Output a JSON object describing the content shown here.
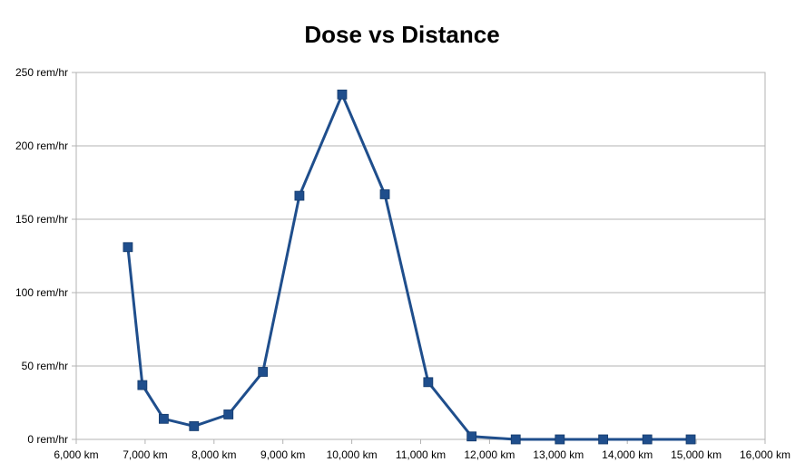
{
  "chart_data": {
    "type": "line",
    "title": "Dose vs Distance",
    "xlabel": "",
    "ylabel": "",
    "xlim": [
      6000,
      16000
    ],
    "ylim": [
      0,
      250
    ],
    "x_ticks": [
      "6,000 km",
      "7,000 km",
      "8,000 km",
      "9,000 km",
      "10,000 km",
      "11,000 km",
      "12,000 km",
      "13,000 km",
      "14,000 km",
      "15,000 km",
      "16,000 km"
    ],
    "y_ticks": [
      "0 rem/hr",
      "50 rem/hr",
      "100 rem/hr",
      "150 rem/hr",
      "200 rem/hr",
      "250 rem/hr"
    ],
    "grid": "horizontal",
    "legend": "none",
    "series": [
      {
        "color": "#1f4e8c",
        "marker": "square",
        "points": [
          {
            "x": 6750,
            "y": 131
          },
          {
            "x": 6960,
            "y": 37
          },
          {
            "x": 7270,
            "y": 14
          },
          {
            "x": 7710,
            "y": 9
          },
          {
            "x": 8210,
            "y": 17
          },
          {
            "x": 8710,
            "y": 46
          },
          {
            "x": 9240,
            "y": 166
          },
          {
            "x": 9860,
            "y": 235
          },
          {
            "x": 10480,
            "y": 167
          },
          {
            "x": 11110,
            "y": 39
          },
          {
            "x": 11740,
            "y": 2
          },
          {
            "x": 12380,
            "y": 0
          },
          {
            "x": 13020,
            "y": 0
          },
          {
            "x": 13650,
            "y": 0
          },
          {
            "x": 14290,
            "y": 0
          },
          {
            "x": 14920,
            "y": 0
          }
        ]
      }
    ]
  }
}
